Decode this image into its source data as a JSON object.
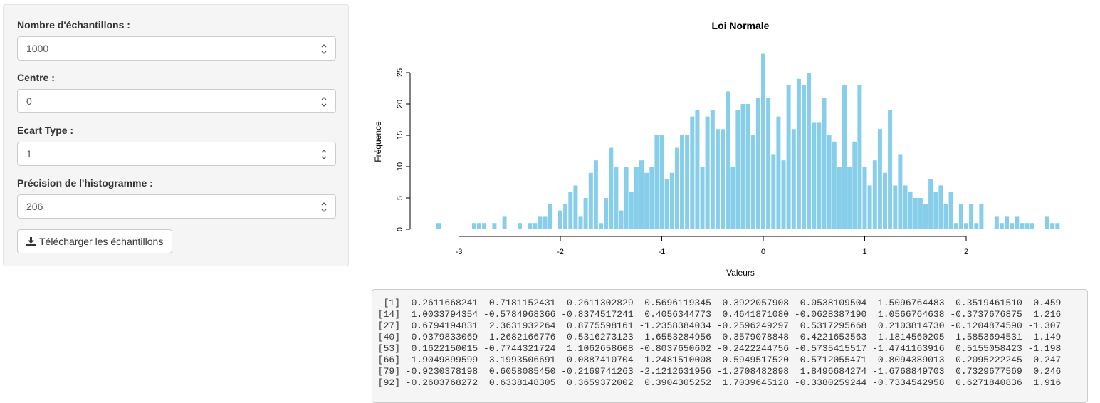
{
  "sidebar": {
    "inputs": [
      {
        "label": "Nombre d'échantillons :",
        "value": "1000"
      },
      {
        "label": "Centre :",
        "value": "0"
      },
      {
        "label": "Ecart Type :",
        "value": "1"
      },
      {
        "label": "Précision de l'histogramme :",
        "value": "206"
      }
    ],
    "download_button": {
      "label": "Télécharger les échantillons",
      "icon": "download-icon"
    }
  },
  "chart_data": {
    "type": "bar",
    "title": "Loi Normale",
    "xlabel": "Valeurs",
    "ylabel": "Fréquence",
    "xlim": [
      -3.0,
      2.8
    ],
    "ylim": [
      0,
      28
    ],
    "x_ticks": [
      "-3",
      "-2",
      "-1",
      "0",
      "1",
      "2"
    ],
    "y_ticks": [
      "0",
      "5",
      "10",
      "15",
      "20",
      "25"
    ],
    "bar_color": "#87ceeb",
    "bins": [
      [
        -3.2,
        1
      ],
      [
        -2.85,
        1
      ],
      [
        -2.8,
        1
      ],
      [
        -2.75,
        1
      ],
      [
        -2.65,
        1
      ],
      [
        -2.55,
        2
      ],
      [
        -2.4,
        1
      ],
      [
        -2.3,
        1
      ],
      [
        -2.25,
        1
      ],
      [
        -2.2,
        2
      ],
      [
        -2.15,
        2
      ],
      [
        -2.1,
        4
      ],
      [
        -2.0,
        3
      ],
      [
        -1.95,
        4
      ],
      [
        -1.9,
        6
      ],
      [
        -1.85,
        7
      ],
      [
        -1.8,
        2
      ],
      [
        -1.75,
        5
      ],
      [
        -1.7,
        9
      ],
      [
        -1.65,
        11
      ],
      [
        -1.6,
        1
      ],
      [
        -1.55,
        5
      ],
      [
        -1.5,
        13
      ],
      [
        -1.45,
        10
      ],
      [
        -1.4,
        3
      ],
      [
        -1.35,
        10
      ],
      [
        -1.3,
        6
      ],
      [
        -1.25,
        10
      ],
      [
        -1.2,
        11
      ],
      [
        -1.15,
        9
      ],
      [
        -1.1,
        10
      ],
      [
        -1.05,
        15
      ],
      [
        -1.0,
        15
      ],
      [
        -0.95,
        8
      ],
      [
        -0.9,
        9
      ],
      [
        -0.85,
        13
      ],
      [
        -0.8,
        15
      ],
      [
        -0.75,
        15
      ],
      [
        -0.7,
        18
      ],
      [
        -0.65,
        19
      ],
      [
        -0.6,
        10
      ],
      [
        -0.55,
        18
      ],
      [
        -0.5,
        19
      ],
      [
        -0.45,
        16
      ],
      [
        -0.4,
        16
      ],
      [
        -0.35,
        22
      ],
      [
        -0.3,
        10
      ],
      [
        -0.25,
        19
      ],
      [
        -0.2,
        20
      ],
      [
        -0.15,
        20
      ],
      [
        -0.1,
        15
      ],
      [
        -0.05,
        21
      ],
      [
        0.0,
        28
      ],
      [
        0.05,
        21
      ],
      [
        0.1,
        12
      ],
      [
        0.15,
        18
      ],
      [
        0.2,
        11
      ],
      [
        0.25,
        23
      ],
      [
        0.3,
        16
      ],
      [
        0.35,
        24
      ],
      [
        0.4,
        23
      ],
      [
        0.45,
        25
      ],
      [
        0.5,
        17
      ],
      [
        0.55,
        17
      ],
      [
        0.6,
        21
      ],
      [
        0.65,
        15
      ],
      [
        0.7,
        14
      ],
      [
        0.75,
        10
      ],
      [
        0.8,
        23
      ],
      [
        0.85,
        10
      ],
      [
        0.9,
        14
      ],
      [
        0.95,
        23
      ],
      [
        1.0,
        10
      ],
      [
        1.05,
        7
      ],
      [
        1.1,
        11
      ],
      [
        1.15,
        16
      ],
      [
        1.2,
        9
      ],
      [
        1.25,
        19
      ],
      [
        1.3,
        7
      ],
      [
        1.35,
        12
      ],
      [
        1.4,
        7
      ],
      [
        1.45,
        6
      ],
      [
        1.5,
        5
      ],
      [
        1.55,
        5
      ],
      [
        1.6,
        4
      ],
      [
        1.65,
        8
      ],
      [
        1.7,
        6
      ],
      [
        1.75,
        7
      ],
      [
        1.8,
        4
      ],
      [
        1.85,
        6
      ],
      [
        1.9,
        1
      ],
      [
        1.95,
        4
      ],
      [
        2.0,
        1
      ],
      [
        2.05,
        4
      ],
      [
        2.1,
        1
      ],
      [
        2.15,
        4
      ],
      [
        2.3,
        2
      ],
      [
        2.35,
        1
      ],
      [
        2.4,
        2
      ],
      [
        2.45,
        1
      ],
      [
        2.5,
        2
      ],
      [
        2.55,
        1
      ],
      [
        2.6,
        1
      ],
      [
        2.65,
        1
      ],
      [
        2.8,
        2
      ],
      [
        2.85,
        1
      ],
      [
        2.9,
        1
      ]
    ]
  },
  "console": {
    "lines": [
      "  [1]  0.2611668241  0.7181152431 -0.2611302829  0.5696119345 -0.3922057908  0.0538109504  1.5096764483  0.3519461510 -0.459",
      " [14]  1.0033794354 -0.5784968366 -0.8374517241  0.4056344773  0.4641871080 -0.0628387190  1.0566764638 -0.3737676875  1.216",
      " [27]  0.6794194831  2.3631932264  0.8775598161 -1.2358384034 -0.2596249297  0.5317295668  0.2103814730 -0.1204874590 -1.307",
      " [40]  0.9379833069  1.2682166776 -0.5316273123  1.6553284956  0.3579078848  0.4221653563 -1.1814560205  1.5853694531 -1.149",
      " [53]  0.1622150015 -0.7744321724  1.1062658608 -0.8037650602 -0.2422244756 -0.5735415517 -1.4741163916  0.5155058423 -1.198",
      " [66] -1.9049899599 -3.1993506691 -0.0887410704  1.2481510008  0.5949517520 -0.5712055471  0.8094389013  0.2095222245 -0.247",
      " [79] -0.9230378198  0.6058085450 -0.2169741263 -2.1212631956 -1.2708482898  1.8496684274 -1.6768849703  0.7329677569  0.246",
      " [92] -0.2603768272  0.6338148305  0.3659372002  0.3904305252  1.7039645128 -0.3380259244 -0.7334542958  0.6271840836  1.916"
    ]
  }
}
